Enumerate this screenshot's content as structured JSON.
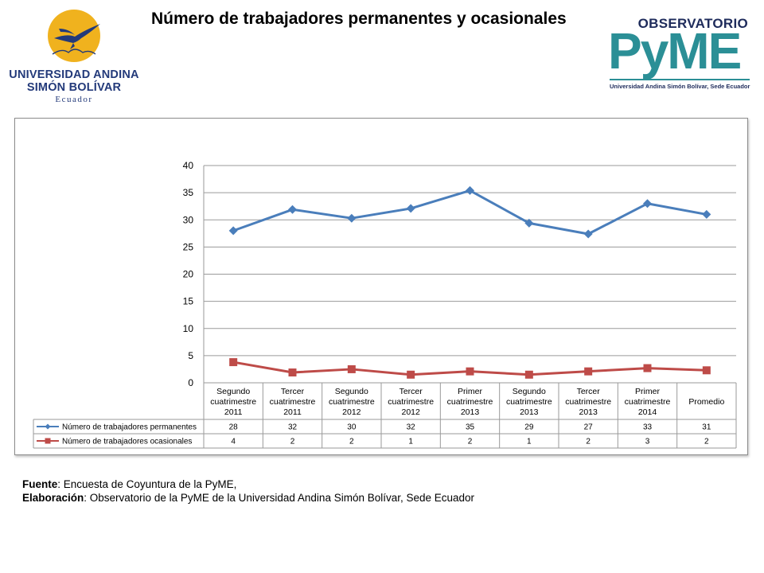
{
  "logos": {
    "uasb": {
      "line1": "UNIVERSIDAD ANDINA",
      "line2": "SIMÓN BOLÍVAR",
      "line3": "Ecuador"
    },
    "pyme": {
      "top": "OBSERVATORIO",
      "word": "PyME",
      "subtitle": "Universidad Andina Simón Bolívar, Sede Ecuador"
    }
  },
  "colors": {
    "series1": "#4a7ebb",
    "series2": "#be4b48",
    "grid": "#9a9a9a",
    "uasb_blue": "#233a7a",
    "uasb_gold": "#f0b21e",
    "pyme_teal": "#2b8f96"
  },
  "chart_data": {
    "type": "line",
    "title": "Número de trabajadores permanentes y ocasionales",
    "categories": [
      [
        "Segundo",
        "cuatrimestre",
        "2011"
      ],
      [
        "Tercer",
        "cuatrimestre",
        "2011"
      ],
      [
        "Segundo",
        "cuatrimestre",
        "2012"
      ],
      [
        "Tercer",
        "cuatrimestre",
        "2012"
      ],
      [
        "Primer",
        "cuatrimestre",
        "2013"
      ],
      [
        "Segundo",
        "cuatrimestre",
        "2013"
      ],
      [
        "Tercer",
        "cuatrimestre",
        "2013"
      ],
      [
        "Primer",
        "cuatrimestre",
        "2014"
      ],
      [
        "Promedio"
      ]
    ],
    "series": [
      {
        "name": "Número de trabajadores permanentes",
        "marker": "diamond",
        "values": [
          28,
          31.9,
          30.3,
          32.1,
          35.4,
          29.4,
          27.4,
          33,
          31
        ],
        "table_values": [
          "28",
          "32",
          "30",
          "32",
          "35",
          "29",
          "27",
          "33",
          "31"
        ]
      },
      {
        "name": "Número de trabajadores ocasionales",
        "marker": "square",
        "values": [
          3.8,
          1.9,
          2.5,
          1.5,
          2.1,
          1.5,
          2.1,
          2.7,
          2.3
        ],
        "table_values": [
          "4",
          "2",
          "2",
          "1",
          "2",
          "1",
          "2",
          "3",
          "2"
        ]
      }
    ],
    "yticks": [
      "0",
      "5",
      "10",
      "15",
      "20",
      "25",
      "30",
      "35",
      "40"
    ],
    "ylim": [
      0,
      40
    ],
    "grid": true,
    "legend": "data-table"
  },
  "source": {
    "fuente_label": "Fuente",
    "fuente_text": ": Encuesta de Coyuntura de la PyME,",
    "elab_label": "Elaboración",
    "elab_text": ": Observatorio de la PyME de la Universidad Andina Simón Bolívar, Sede Ecuador"
  }
}
